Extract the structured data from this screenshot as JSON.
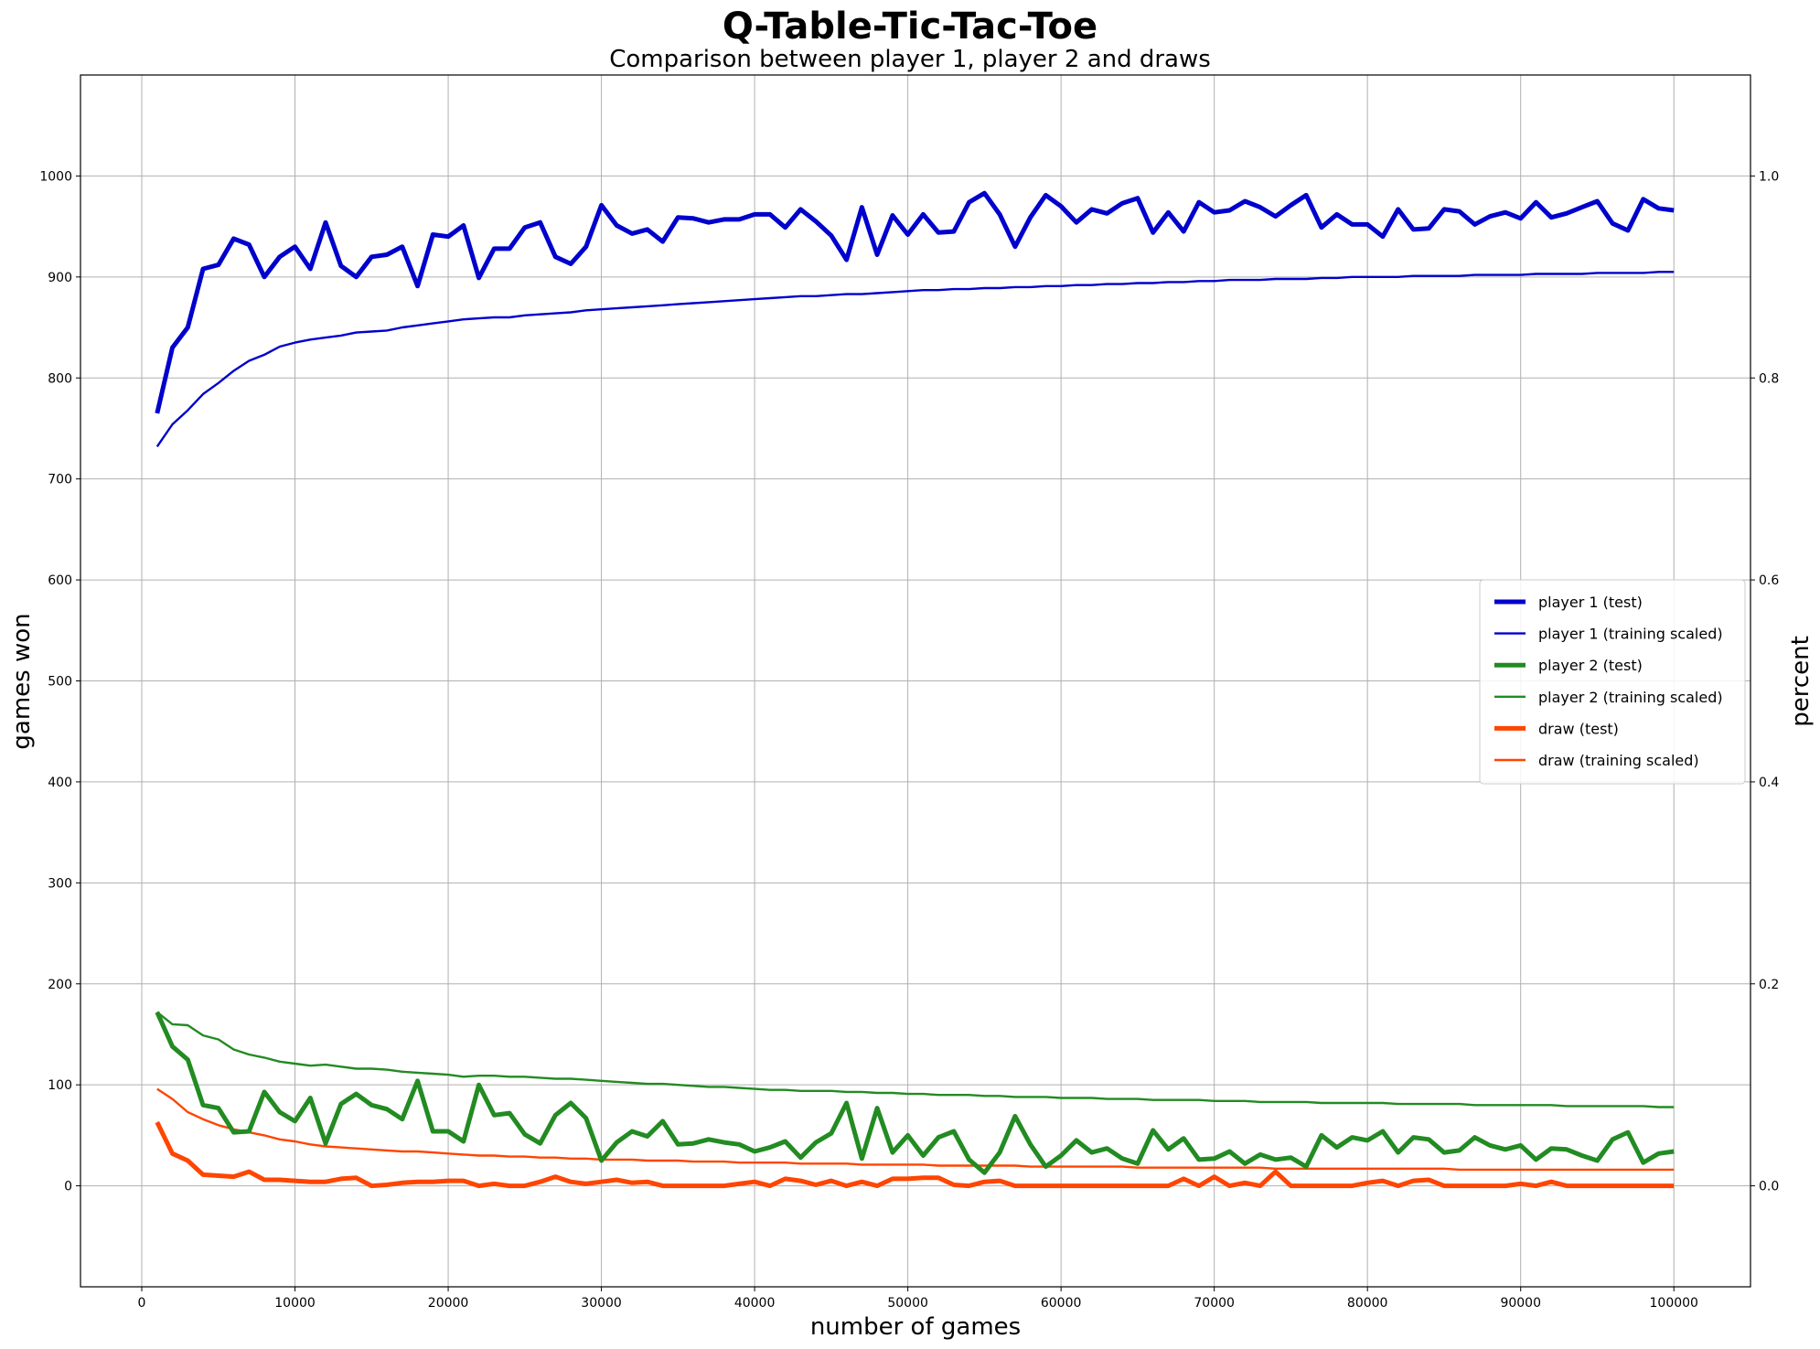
{
  "chart_data": {
    "type": "line",
    "title": "Q-Table-Tic-Tac-Toe",
    "subtitle": "Comparison between player 1, player 2 and draws",
    "xlabel": "number of games",
    "ylabel": "games won",
    "ylabel_right": "percent",
    "xlim": [
      -4000,
      105000
    ],
    "ylim": [
      -100,
      1100
    ],
    "ylim_right": [
      -0.1,
      1.1
    ],
    "grid": true,
    "legend_position": "center-right",
    "xticks": [
      0,
      10000,
      20000,
      30000,
      40000,
      50000,
      60000,
      70000,
      80000,
      90000,
      100000
    ],
    "yticks": [
      0,
      100,
      200,
      300,
      400,
      500,
      600,
      700,
      800,
      900,
      1000
    ],
    "yticks_right": [
      "0.0",
      "0.2",
      "0.4",
      "0.6",
      "0.8",
      "1.0"
    ],
    "x_start": 1000,
    "x_step": 1000,
    "series": [
      {
        "name": "player 1 (test)",
        "color": "#0000cd",
        "style": "thick",
        "values": [
          765,
          830,
          850,
          908,
          912,
          938,
          932,
          900,
          920,
          930,
          908,
          954,
          911,
          900,
          920,
          922,
          930,
          891,
          942,
          940,
          951,
          899,
          928,
          928,
          949,
          954,
          920,
          913,
          930,
          971,
          951,
          943,
          947,
          935,
          959,
          958,
          954,
          957,
          957,
          962,
          962,
          949,
          967,
          955,
          941,
          917,
          969,
          922,
          961,
          942,
          962,
          944,
          945,
          974,
          983,
          962,
          930,
          959,
          981,
          970,
          954,
          967,
          963,
          973,
          978,
          944,
          964,
          945,
          974,
          964,
          966,
          975,
          969,
          960,
          971,
          981,
          949,
          962,
          952,
          952,
          940,
          967,
          947,
          948,
          967,
          965,
          952,
          960,
          964,
          958,
          974,
          959,
          963,
          969,
          975,
          953,
          946,
          977,
          968,
          966
        ]
      },
      {
        "name": "player 1 (training scaled)",
        "color": "#0000cd",
        "style": "thin",
        "values": [
          732,
          754,
          768,
          784,
          795,
          807,
          817,
          823,
          831,
          835,
          838,
          840,
          842,
          845,
          846,
          847,
          850,
          852,
          854,
          856,
          858,
          859,
          860,
          860,
          862,
          863,
          864,
          865,
          867,
          868,
          869,
          870,
          871,
          872,
          873,
          874,
          875,
          876,
          877,
          878,
          879,
          880,
          881,
          881,
          882,
          883,
          883,
          884,
          885,
          886,
          887,
          887,
          888,
          888,
          889,
          889,
          890,
          890,
          891,
          891,
          892,
          892,
          893,
          893,
          894,
          894,
          895,
          895,
          896,
          896,
          897,
          897,
          897,
          898,
          898,
          898,
          899,
          899,
          900,
          900,
          900,
          900,
          901,
          901,
          901,
          901,
          902,
          902,
          902,
          902,
          903,
          903,
          903,
          903,
          904,
          904,
          904,
          904,
          905,
          905
        ]
      },
      {
        "name": "player 2 (test)",
        "color": "#228b22",
        "style": "thick",
        "values": [
          172,
          138,
          125,
          80,
          77,
          53,
          54,
          93,
          73,
          64,
          87,
          42,
          81,
          91,
          80,
          76,
          66,
          104,
          54,
          54,
          44,
          100,
          70,
          72,
          51,
          42,
          70,
          82,
          67,
          25,
          43,
          54,
          49,
          64,
          41,
          42,
          46,
          43,
          41,
          34,
          38,
          44,
          28,
          43,
          52,
          82,
          27,
          77,
          33,
          50,
          30,
          48,
          54,
          26,
          13,
          33,
          69,
          41,
          19,
          30,
          45,
          33,
          37,
          27,
          22,
          55,
          36,
          47,
          26,
          27,
          34,
          22,
          31,
          26,
          28,
          19,
          50,
          38,
          48,
          45,
          54,
          33,
          48,
          46,
          33,
          35,
          48,
          40,
          36,
          40,
          26,
          37,
          36,
          30,
          25,
          46,
          53,
          23,
          32,
          34
        ]
      },
      {
        "name": "player 2 (training scaled)",
        "color": "#228b22",
        "style": "thin",
        "values": [
          172,
          160,
          159,
          149,
          145,
          135,
          130,
          127,
          123,
          121,
          119,
          120,
          118,
          116,
          116,
          115,
          113,
          112,
          111,
          110,
          108,
          109,
          109,
          108,
          108,
          107,
          106,
          106,
          105,
          104,
          103,
          102,
          101,
          101,
          100,
          99,
          98,
          98,
          97,
          96,
          95,
          95,
          94,
          94,
          94,
          93,
          93,
          92,
          92,
          91,
          91,
          90,
          90,
          90,
          89,
          89,
          88,
          88,
          88,
          87,
          87,
          87,
          86,
          86,
          86,
          85,
          85,
          85,
          85,
          84,
          84,
          84,
          83,
          83,
          83,
          83,
          82,
          82,
          82,
          82,
          82,
          81,
          81,
          81,
          81,
          81,
          80,
          80,
          80,
          80,
          80,
          80,
          79,
          79,
          79,
          79,
          79,
          79,
          78,
          78
        ]
      },
      {
        "name": "draw (test)",
        "color": "#ff4500",
        "style": "thick",
        "values": [
          63,
          32,
          25,
          11,
          10,
          9,
          14,
          6,
          6,
          5,
          4,
          4,
          7,
          8,
          0,
          1,
          3,
          4,
          4,
          5,
          5,
          0,
          2,
          0,
          0,
          4,
          9,
          4,
          2,
          4,
          6,
          3,
          4,
          0,
          0,
          0,
          0,
          0,
          2,
          4,
          0,
          7,
          5,
          1,
          5,
          0,
          4,
          0,
          7,
          7,
          8,
          8,
          1,
          0,
          4,
          5,
          0,
          0,
          0,
          0,
          0,
          0,
          0,
          0,
          0,
          0,
          0,
          7,
          0,
          9,
          0,
          3,
          0,
          14,
          0,
          0,
          0,
          0,
          0,
          3,
          5,
          0,
          5,
          6,
          0,
          0,
          0,
          0,
          0,
          2,
          0,
          4,
          0,
          0,
          0,
          0,
          0,
          0,
          0,
          0
        ]
      },
      {
        "name": "draw (training scaled)",
        "color": "#ff4500",
        "style": "thin",
        "values": [
          96,
          86,
          73,
          66,
          60,
          56,
          53,
          50,
          46,
          44,
          41,
          39,
          38,
          37,
          36,
          35,
          34,
          34,
          33,
          32,
          31,
          30,
          30,
          29,
          29,
          28,
          28,
          27,
          27,
          26,
          26,
          26,
          25,
          25,
          25,
          24,
          24,
          24,
          23,
          23,
          23,
          23,
          22,
          22,
          22,
          22,
          21,
          21,
          21,
          21,
          21,
          20,
          20,
          20,
          20,
          20,
          20,
          19,
          19,
          19,
          19,
          19,
          19,
          19,
          18,
          18,
          18,
          18,
          18,
          18,
          18,
          18,
          18,
          17,
          17,
          17,
          17,
          17,
          17,
          17,
          17,
          17,
          17,
          17,
          17,
          16,
          16,
          16,
          16,
          16,
          16,
          16,
          16,
          16,
          16,
          16,
          16,
          16,
          16,
          16
        ]
      }
    ]
  }
}
